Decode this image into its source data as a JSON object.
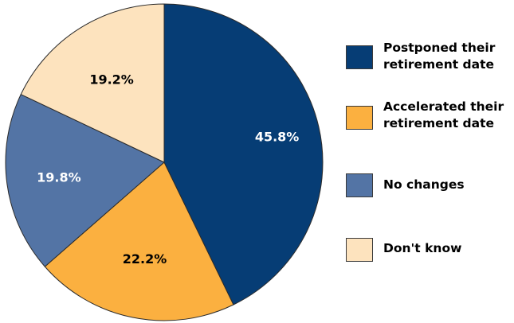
{
  "chart_data": {
    "type": "pie",
    "categories": [
      "Postponed their retirement date",
      "Accelerated their retirement date",
      "No changes",
      "Don't know"
    ],
    "values": [
      45.8,
      22.2,
      19.8,
      19.2
    ],
    "value_labels": [
      "45.8%",
      "22.2%",
      "19.8%",
      "19.2%"
    ],
    "colors": [
      "#063d75",
      "#fbb040",
      "#5374a5",
      "#fde3be"
    ],
    "label_colors": [
      "#ffffff",
      "#000000",
      "#ffffff",
      "#000000"
    ],
    "start_angle_deg": 0,
    "direction": "clockwise",
    "title": "",
    "legend_position": "right"
  },
  "legend": {
    "items": [
      {
        "label": "Postponed their\nretirement date",
        "color": "#063d75"
      },
      {
        "label": "Accelerated their\nretirement date",
        "color": "#fbb040"
      },
      {
        "label": "No changes",
        "color": "#5374a5"
      },
      {
        "label": "Don't know",
        "color": "#fde3be"
      }
    ]
  }
}
